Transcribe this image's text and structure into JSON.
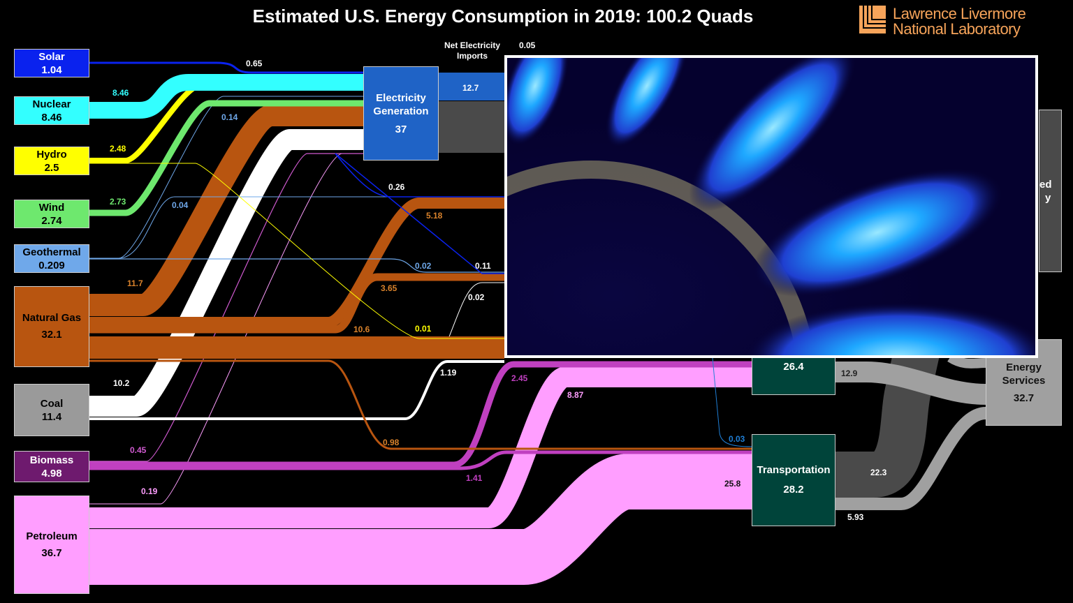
{
  "title": "Estimated U.S. Energy Consumption in 2019: 100.2 Quads",
  "logo": {
    "line1": "Lawrence Livermore",
    "line2": "National Laboratory",
    "color": "#f7a45a"
  },
  "sources": [
    {
      "name": "Solar",
      "value": "1.04",
      "color": "#0a22ee"
    },
    {
      "name": "Nuclear",
      "value": "8.46",
      "color": "#33ffff"
    },
    {
      "name": "Hydro",
      "value": "2.5",
      "color": "#ffff00"
    },
    {
      "name": "Wind",
      "value": "2.74",
      "color": "#6ee86e"
    },
    {
      "name": "Geothermal",
      "value": "0.209",
      "color": "#6fa8ea"
    },
    {
      "name": "Natural Gas",
      "value": "32.1",
      "color": "#b85510"
    },
    {
      "name": "Coal",
      "value": "11.4",
      "color": "#9a9a9a"
    },
    {
      "name": "Biomass",
      "value": "4.98",
      "color": "#6e1a6e"
    },
    {
      "name": "Petroleum",
      "value": "36.7",
      "color": "#ff9eff"
    }
  ],
  "electricity": {
    "line1": "Electricity",
    "line2": "Generation",
    "value": "37",
    "color": "#1f63c6"
  },
  "imports": {
    "line1": "Net Electricity",
    "line2": "Imports",
    "value": "0.05",
    "out_value": "12.7"
  },
  "industrial": {
    "value": "26.4",
    "color": "#00443a"
  },
  "transportation": {
    "name": "Transportation",
    "value": "28.2",
    "color": "#00443a"
  },
  "rejected": {
    "partial1": "ed",
    "partial2": "y",
    "color": "#4a4a4a"
  },
  "services": {
    "line1": "Energy",
    "line2": "Services",
    "value": "32.7",
    "color": "#a0a0a0"
  },
  "flow_labels": [
    {
      "text": "0.65",
      "color": "#ffffff"
    },
    {
      "text": "8.46",
      "color": "#33ffff"
    },
    {
      "text": "0.14",
      "color": "#6fa8ea"
    },
    {
      "text": "2.48",
      "color": "#ffff00"
    },
    {
      "text": "2.73",
      "color": "#6ee86e"
    },
    {
      "text": "0.04",
      "color": "#6fa8ea"
    },
    {
      "text": "11.7",
      "color": "#d9822b"
    },
    {
      "text": "10.2",
      "color": "#ffffff"
    },
    {
      "text": "0.45",
      "color": "#d05ad0"
    },
    {
      "text": "0.19",
      "color": "#ff9eff"
    },
    {
      "text": "0.26",
      "color": "#ffffff"
    },
    {
      "text": "5.18",
      "color": "#d9822b"
    },
    {
      "text": "0.02",
      "color": "#6fa8ea"
    },
    {
      "text": "0.11",
      "color": "#ffffff"
    },
    {
      "text": "3.65",
      "color": "#d9822b"
    },
    {
      "text": "0.02",
      "color": "#ffffff"
    },
    {
      "text": "0.01",
      "color": "#ffff00"
    },
    {
      "text": "10.6",
      "color": "#d9822b"
    },
    {
      "text": "1.19",
      "color": "#ffffff"
    },
    {
      "text": "2.45",
      "color": "#c040c0"
    },
    {
      "text": "8.87",
      "color": "#ff9eff"
    },
    {
      "text": "0.98",
      "color": "#d9822b"
    },
    {
      "text": "1.41",
      "color": "#c040c0"
    },
    {
      "text": "0.03",
      "color": "#1f7fd6"
    },
    {
      "text": "25.8",
      "color": "#111111"
    },
    {
      "text": "12.9",
      "color": "#222222"
    },
    {
      "text": "22.3",
      "color": "#ffffff"
    },
    {
      "text": "5.93",
      "color": "#ffffff"
    }
  ]
}
